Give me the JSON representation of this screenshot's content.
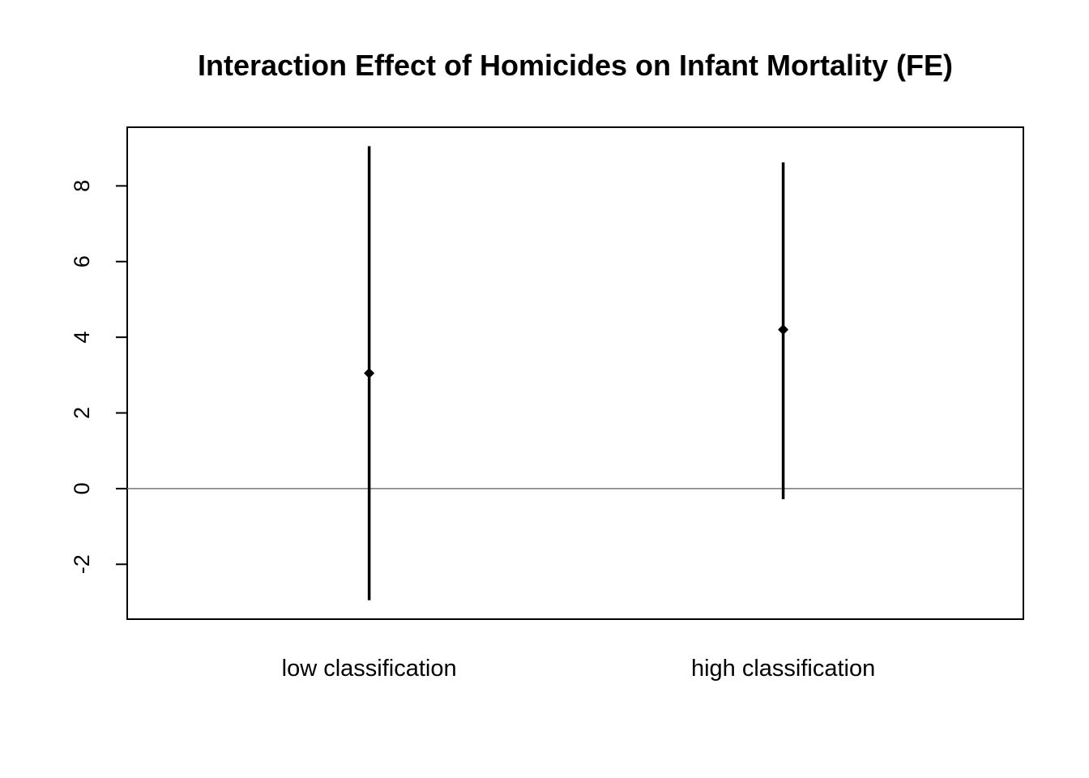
{
  "chart_data": {
    "type": "errorbar",
    "title": "Interaction Effect of Homicides on Infant Mortality (FE)",
    "xlabel": "",
    "ylabel": "",
    "categories": [
      "low classification",
      "high classification"
    ],
    "estimates": [
      3.05,
      4.2
    ],
    "lower": [
      -2.95,
      -0.28
    ],
    "upper": [
      9.05,
      8.62
    ],
    "yticks": [
      -2,
      0,
      2,
      4,
      6,
      8
    ],
    "ylim": [
      -3.45,
      9.55
    ],
    "reference_line": 0,
    "grid": false,
    "legend": "none",
    "colors": {
      "marks": "#000000",
      "reference_line": "#777777"
    }
  }
}
